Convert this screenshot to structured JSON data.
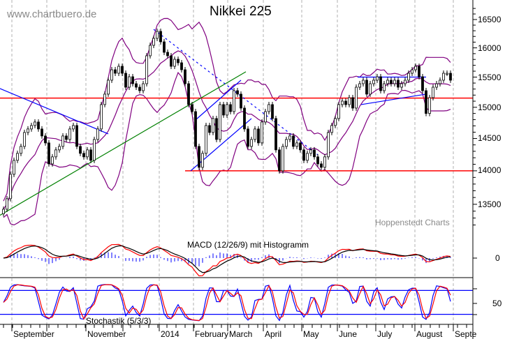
{
  "chart_data": {
    "type": "candlestick",
    "title": "Nikkei 225",
    "watermark": "www.chartbuero.de",
    "source": "Hoppenstedt Charts",
    "y_scale": "log",
    "ylim": [
      13200,
      16700
    ],
    "y_ticks": [
      "16500",
      "16000",
      "15500",
      "15000",
      "14500",
      "14000",
      "13500"
    ],
    "x_ticks": [
      "September",
      "November",
      "2014",
      "February",
      "March",
      "April",
      "May",
      "June",
      "July",
      "August",
      "Septe"
    ],
    "grid": "vertical dashed",
    "closes": [
      13428,
      13582,
      13947,
      14160,
      14268,
      14376,
      14595,
      14651,
      14706,
      14762,
      14651,
      14540,
      14431,
      14106,
      14214,
      14322,
      14376,
      14540,
      14485,
      14651,
      14706,
      14376,
      14268,
      14214,
      14322,
      14160,
      14485,
      14651,
      15044,
      15216,
      15448,
      15624,
      15565,
      15683,
      15565,
      15331,
      15506,
      15389,
      15331,
      15273,
      15389,
      15863,
      16044,
      16166,
      16289,
      16105,
      15923,
      15863,
      15683,
      15803,
      15743,
      15624,
      15389,
      15044,
      14930,
      14376,
      14053,
      14268,
      14706,
      14595,
      14818,
      14485,
      15044,
      14874,
      15044,
      14930,
      15273,
      15216,
      14987,
      14651,
      14376,
      14485,
      14651,
      14431,
      14762,
      14930,
      15044,
      14818,
      14322,
      14000,
      14376,
      14485,
      14540,
      14376,
      14431,
      14322,
      14160,
      14268,
      14322,
      14214,
      14106,
      14053,
      14214,
      14595,
      14706,
      14818,
      15044,
      15101,
      15044,
      15158,
      14987,
      15331,
      15389,
      15448,
      15216,
      15389,
      15448,
      15506,
      15273,
      15389,
      15448,
      15389,
      15448,
      15331,
      15389,
      15448,
      15565,
      15624,
      15683,
      15506,
      15273,
      14900,
      15158,
      15331,
      15389,
      15448,
      15565,
      15565,
      15448
    ],
    "trendlines": [
      {
        "color": "#ff0000",
        "from": [
          -1,
          15150
        ],
        "to": [
          135,
          15150
        ]
      },
      {
        "color": "#ff0000",
        "from": [
          52,
          14000
        ],
        "to": [
          135,
          14000
        ]
      },
      {
        "color": "#0000ff",
        "from": [
          -1,
          15308
        ],
        "to": [
          30,
          14573
        ]
      },
      {
        "color": "#008000",
        "from": [
          -1,
          13340
        ],
        "to": [
          69.4,
          15590
        ]
      },
      {
        "color": "#0000ff",
        "from": [
          53.6,
          14000
        ],
        "to": [
          71,
          14818
        ]
      },
      {
        "color": "#0000ff",
        "from": [
          55,
          14796
        ],
        "to": [
          68,
          15448
        ]
      },
      {
        "color": "#0000ff",
        "from": [
          43,
          16325
        ],
        "to": [
          90,
          14246
        ],
        "dashed": true
      },
      {
        "color": "#0000ff",
        "from": [
          101.4,
          15500
        ],
        "to": [
          121,
          15500
        ]
      },
      {
        "color": "#0000ff",
        "from": [
          102.4,
          15044
        ],
        "to": [
          121,
          15216
        ]
      }
    ],
    "indicators": {
      "bollinger_color": "#800080",
      "macd": {
        "label": "MACD (12/26/9) mit Histogramm",
        "zero_tick": "0",
        "macd_color": "#000000",
        "signal_color": "#ff0000",
        "hist_color": "#0000ff"
      },
      "stochastic": {
        "label": "Stochastik (5/3/3)",
        "tick": "50",
        "k_color": "#0000ff",
        "d_color": "#ff0000",
        "bands": [
          80,
          20
        ]
      }
    }
  }
}
